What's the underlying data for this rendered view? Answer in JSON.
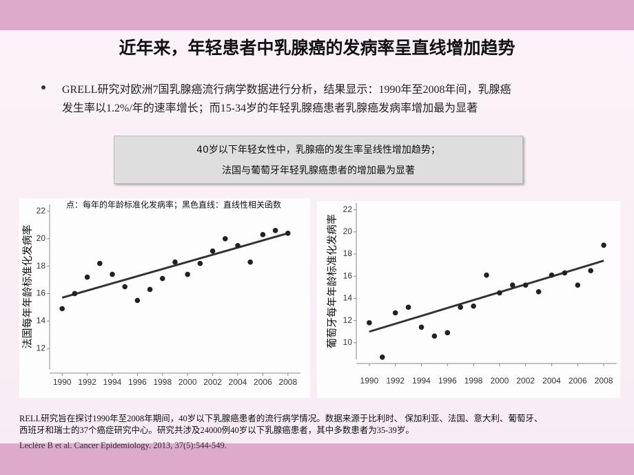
{
  "title": "近年来，年轻患者中乳腺癌的发病率呈直线增加趋势",
  "bullet": {
    "lines": [
      "GRELL研究对欧洲7国乳腺癌流行病学数据进行分析，结果显示：1990年至2008年间，乳腺癌",
      "发生率以1.2%/年的速率增长；而15-34岁的年轻乳腺癌患者乳腺癌发病率增加最为显著"
    ]
  },
  "callout": {
    "lines": [
      "40岁以下年轻女性中，乳腺癌的发生率呈线性增加趋势；",
      "法国与葡萄牙年轻乳腺癌患者的增加最为显著"
    ]
  },
  "chart_data": [
    {
      "type": "scatter",
      "ylabel": "法国每年年龄标准化发病率",
      "annotation": "点：每年的年龄标准化发病率；黑色直线：直线性相关函数",
      "points": {
        "color": "#222222",
        "x": [
          1990,
          1991,
          1992,
          1993,
          1994,
          1995,
          1996,
          1997,
          1998,
          1999,
          2000,
          2001,
          2002,
          2003,
          2004,
          2005,
          2006,
          2007,
          2008
        ],
        "values": [
          14.9,
          16.0,
          17.2,
          18.2,
          17.4,
          16.5,
          15.5,
          16.3,
          17.1,
          18.3,
          17.4,
          18.2,
          19.1,
          20.0,
          19.5,
          18.3,
          20.3,
          20.6,
          20.4
        ]
      },
      "trend": {
        "color": "#333333",
        "x": [
          1990,
          2008
        ],
        "values": [
          15.7,
          20.4
        ]
      },
      "xlim": [
        1989,
        2009
      ],
      "xticks": [
        1990,
        1992,
        1994,
        1996,
        1998,
        2000,
        2002,
        2004,
        2006,
        2008
      ],
      "ylim": [
        10.5,
        22.5
      ],
      "yticks": [
        12,
        14,
        16,
        18,
        20,
        22
      ]
    },
    {
      "type": "scatter",
      "ylabel": "葡萄牙每年年龄标准化发病率",
      "points": {
        "color": "#222222",
        "x": [
          1990,
          1991,
          1992,
          1993,
          1994,
          1995,
          1996,
          1997,
          1998,
          1999,
          2000,
          2001,
          2002,
          2003,
          2004,
          2005,
          2006,
          2007,
          2008
        ],
        "values": [
          11.8,
          8.7,
          12.7,
          13.2,
          11.4,
          10.6,
          10.9,
          13.2,
          13.3,
          16.1,
          14.5,
          15.2,
          15.2,
          14.6,
          16.1,
          16.3,
          15.2,
          16.5,
          18.8
        ]
      },
      "trend": {
        "color": "#333333",
        "x": [
          1990,
          2008
        ],
        "values": [
          11.0,
          17.4
        ]
      },
      "xlim": [
        1989,
        2009
      ],
      "xticks": [
        1990,
        1992,
        1994,
        1996,
        1998,
        2000,
        2002,
        2004,
        2006,
        2008
      ],
      "ylim": [
        8.5,
        22.6
      ],
      "yticks": [
        10,
        12,
        14,
        16,
        18,
        20,
        22
      ]
    }
  ],
  "note": {
    "lines": [
      "RELL研究旨在探讨1990年至2008年期间，40岁以下乳腺癌患者的流行病学情况。数据来源于比利时、 保加利亚、法国、意大利、葡萄牙、",
      "西班牙和瑞士的37个癌症研究中心。研究共涉及24000例40岁以下乳腺癌患者，其中多数患者为35-39岁。"
    ]
  },
  "citation": "Leclère B et al. Cancer Epidemiology. 2013, 37(5):544-549."
}
